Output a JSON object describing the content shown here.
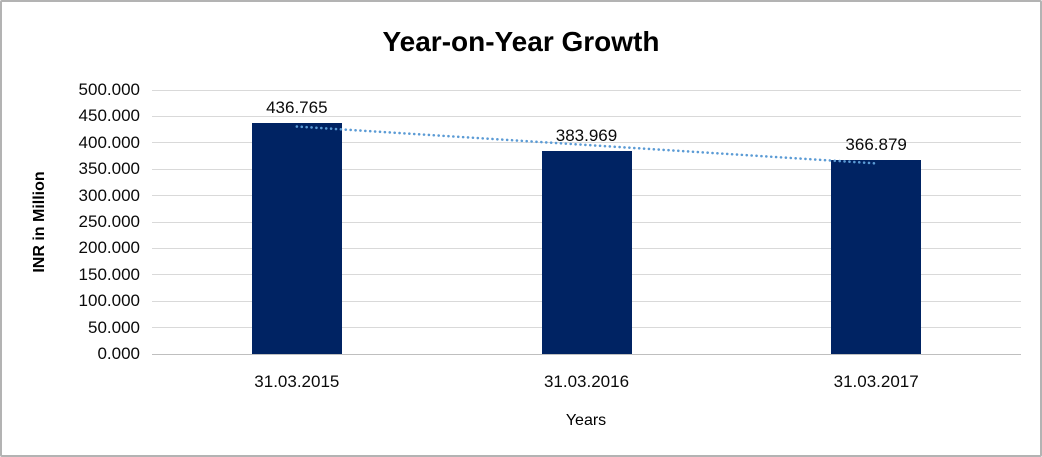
{
  "chart_data": {
    "type": "bar",
    "title": "Year-on-Year Growth",
    "xlabel": "Years",
    "ylabel": "INR in Million",
    "categories": [
      "31.03.2015",
      "31.03.2016",
      "31.03.2017"
    ],
    "values": [
      436.765,
      383.969,
      366.879
    ],
    "value_labels": [
      "436.765",
      "383.969",
      "366.879"
    ],
    "ylim": [
      0,
      500
    ],
    "ytick_step": 50,
    "ytick_labels": [
      "500.000",
      "450.000",
      "400.000",
      "350.000",
      "300.000",
      "250.000",
      "200.000",
      "150.000",
      "100.000",
      "50.000",
      "0.000"
    ],
    "grid": true,
    "legend": "none",
    "bar_color": "#002363",
    "gridline_color": "#d9d9d9",
    "axisline_color": "#bfbfbf",
    "trendline": {
      "type": "linear",
      "style": "dotted",
      "color": "#5b9bd5"
    }
  }
}
